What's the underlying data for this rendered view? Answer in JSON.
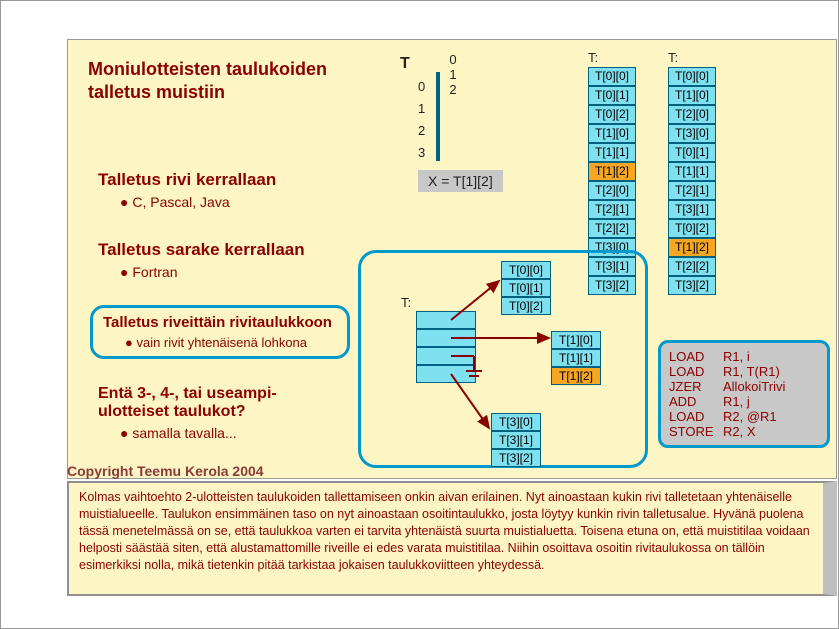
{
  "colors": {
    "bg": "#fdf6c4",
    "cell": "#7fe0f0",
    "cellBorder": "#006080",
    "hl": "#f5a623",
    "text": "#8b0000",
    "frame": "#0099cc",
    "grey": "#c8c8c8"
  },
  "title": "Moniulotteisten taulukoiden talletus muistiin",
  "sections": {
    "row": {
      "h": "Talletus rivi kerrallaan",
      "b": "C, Pascal, Java"
    },
    "col": {
      "h": "Talletus sarake kerrallaan",
      "b": "Fortran"
    },
    "rowarr": {
      "h": "Talletus riveittäin rivitaulukkoon",
      "b": "vain rivit yhtenäisenä lohkona"
    },
    "multi": {
      "h": "Entä 3-, 4-, tai useampi-ulotteiset taulukot?",
      "b": "samalla tavalla..."
    }
  },
  "grid": {
    "label": "T",
    "cols": [
      "0",
      "1",
      "2"
    ],
    "rows": [
      "0",
      "1",
      "2",
      "3"
    ],
    "hlRow": 1,
    "hlCol": 2
  },
  "formula": "X = T[1][2]",
  "mem_row": {
    "label": "T:",
    "cells": [
      "T[0][0]",
      "T[0][1]",
      "T[0][2]",
      "T[1][0]",
      "T[1][1]",
      "T[1][2]",
      "T[2][0]",
      "T[2][1]",
      "T[2][2]",
      "T[3][0]",
      "T[3][1]",
      "T[3][2]"
    ],
    "hl": 5
  },
  "mem_col": {
    "label": "T:",
    "cells": [
      "T[0][0]",
      "T[1][0]",
      "T[2][0]",
      "T[3][0]",
      "T[0][1]",
      "T[1][1]",
      "T[2][1]",
      "T[3][1]",
      "T[0][2]",
      "T[1][2]",
      "T[2][2]",
      "T[3][2]"
    ],
    "hl": 9
  },
  "diag": {
    "label": "T:",
    "block0": [
      "T[0][0]",
      "T[0][1]",
      "T[0][2]"
    ],
    "block1": [
      "T[1][0]",
      "T[1][1]",
      "T[1][2]"
    ],
    "block1_hl": 2,
    "block3": [
      "T[3][0]",
      "T[3][1]",
      "T[3][2]"
    ]
  },
  "code": [
    {
      "op": "LOAD",
      "args": "R1, i"
    },
    {
      "op": "LOAD",
      "args": "R1, T(R1)"
    },
    {
      "op": "JZER",
      "args": "AllokoiTrivi"
    },
    {
      "op": "ADD",
      "args": "R1, j"
    },
    {
      "op": "LOAD",
      "args": "R2, @R1"
    },
    {
      "op": "STORE",
      "args": "R2, X"
    }
  ],
  "copyright": "Copyright Teemu Kerola 2004",
  "notes": "Kolmas vaihtoehto 2-ulotteisten taulukoiden tallettamiseen onkin aivan erilainen. Nyt ainoastaan kukin rivi talletetaan yhtenäiselle muistialueelle. Taulukon ensimmäinen taso on nyt ainoastaan osoitintaulukko, josta löytyy kunkin rivin talletusalue. Hyvänä puolena tässä menetelmässä on se, että taulukkoa varten ei tarvita yhtenäistä suurta muistialuetta. Toisena etuna on, että muistitilaa voidaan helposti säästää siten, että alustamattomille riveille ei edes varata muistitilaa. Niihin osoittava osoitin rivitaulukossa on tällöin esimerkiksi nolla, mikä tietenkin pitää tarkistaa jokaisen taulukkoviitteen yhteydessä."
}
